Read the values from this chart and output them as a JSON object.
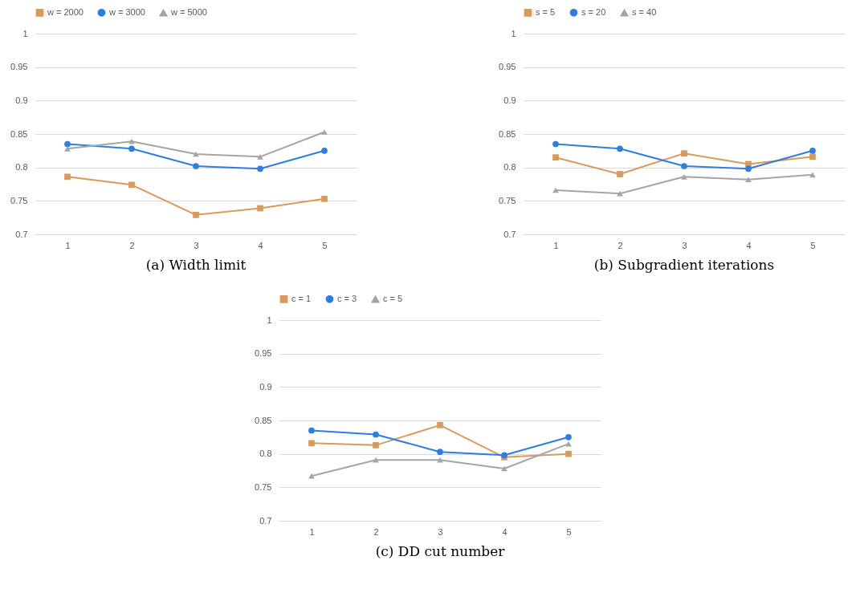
{
  "chart_data": [
    {
      "type": "line",
      "title": "(a) Width limit",
      "categories": [
        "1",
        "2",
        "3",
        "4",
        "5"
      ],
      "ylim": [
        0.7,
        1
      ],
      "yticks": [
        0.7,
        0.75,
        0.8,
        0.85,
        0.9,
        0.95,
        1
      ],
      "grid": "y",
      "legend": "top",
      "series": [
        {
          "name": "w = 2000",
          "color": "#d99a5b",
          "marker": "square",
          "values": [
            0.786,
            0.774,
            0.729,
            0.739,
            0.753
          ]
        },
        {
          "name": "w = 3000",
          "color": "#2f7de1",
          "marker": "circle",
          "values": [
            0.835,
            0.828,
            0.802,
            0.798,
            0.825
          ]
        },
        {
          "name": "w = 5000",
          "color": "#a5a5a5",
          "marker": "triangle",
          "values": [
            0.828,
            0.839,
            0.82,
            0.816,
            0.853
          ]
        }
      ]
    },
    {
      "type": "line",
      "title": "(b) Subgradient iterations",
      "categories": [
        "1",
        "2",
        "3",
        "4",
        "5"
      ],
      "ylim": [
        0.7,
        1
      ],
      "yticks": [
        0.7,
        0.75,
        0.8,
        0.85,
        0.9,
        0.95,
        1
      ],
      "grid": "y",
      "legend": "top",
      "series": [
        {
          "name": "s = 5",
          "color": "#d99a5b",
          "marker": "square",
          "values": [
            0.815,
            0.79,
            0.821,
            0.805,
            0.816
          ]
        },
        {
          "name": "s = 20",
          "color": "#2f7de1",
          "marker": "circle",
          "values": [
            0.835,
            0.828,
            0.802,
            0.798,
            0.825
          ]
        },
        {
          "name": "s = 40",
          "color": "#a5a5a5",
          "marker": "triangle",
          "values": [
            0.766,
            0.761,
            0.786,
            0.782,
            0.789
          ]
        }
      ]
    },
    {
      "type": "line",
      "title": "(c) DD cut number",
      "categories": [
        "1",
        "2",
        "3",
        "4",
        "5"
      ],
      "ylim": [
        0.7,
        1
      ],
      "yticks": [
        0.7,
        0.75,
        0.8,
        0.85,
        0.9,
        0.95,
        1
      ],
      "grid": "y",
      "legend": "top",
      "series": [
        {
          "name": "c = 1",
          "color": "#d99a5b",
          "marker": "square",
          "values": [
            0.816,
            0.813,
            0.843,
            0.795,
            0.8
          ]
        },
        {
          "name": "c = 3",
          "color": "#2f7de1",
          "marker": "circle",
          "values": [
            0.835,
            0.829,
            0.803,
            0.798,
            0.825
          ]
        },
        {
          "name": "c = 5",
          "color": "#a5a5a5",
          "marker": "triangle",
          "values": [
            0.767,
            0.791,
            0.791,
            0.778,
            0.815
          ]
        }
      ]
    }
  ]
}
